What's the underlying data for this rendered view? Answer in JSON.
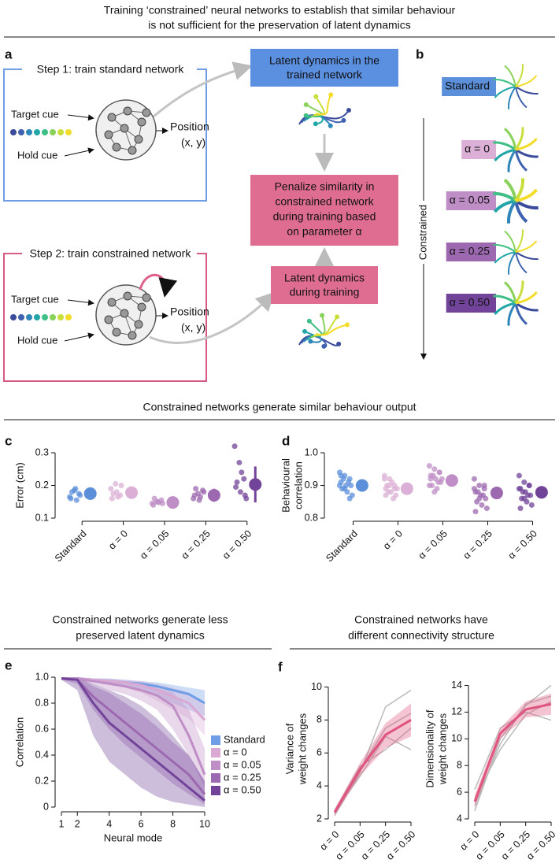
{
  "title_lines": [
    "Training ‘constrained’ neural networks to establish that similar behaviour",
    "is not sufficient for the preservation of latent dynamics"
  ],
  "diagram": {
    "panel": "a",
    "step1": "Step 1: train standard network",
    "step2": "Step 2: train constrained network",
    "target_cue": "Target cue",
    "hold_cue": "Hold cue",
    "position": "Position",
    "position_xy": "(x, y)",
    "box_trained": [
      "Latent dynamics in the",
      "trained network"
    ],
    "box_penalize": [
      "Penalize similarity in",
      "constrained network",
      "during training based",
      "on parameter α"
    ],
    "box_training": [
      "Latent dynamics",
      "during training"
    ]
  },
  "panel_b": {
    "panel": "b",
    "labels": [
      "Standard",
      "α = 0",
      "α = 0.05",
      "α = 0.25",
      "α = 0.50"
    ],
    "colors": [
      "#5b8fd9",
      "#dcb0d6",
      "#bf8ec6",
      "#9c68b0",
      "#71449a"
    ],
    "constrained": "Constrained"
  },
  "section_titles": [
    [
      "Constrained networks generate similar behaviour output"
    ],
    [
      "Constrained networks generate less",
      "preserved latent dynamics"
    ],
    [
      "Constrained networks have",
      "different connectivity structure"
    ]
  ],
  "chart_data": [
    {
      "type": "strip",
      "panel": "c",
      "ylabel": "Error (cm)",
      "categories": [
        "Standard",
        "α = 0",
        "α = 0.05",
        "α = 0.25",
        "α = 0.50"
      ],
      "colors": [
        "#5b8fd9",
        "#dcb0d6",
        "#bf8ec6",
        "#9c68b0",
        "#71449a"
      ],
      "ylim": [
        0.1,
        0.3
      ],
      "yticks": [
        0.1,
        0.2,
        0.3
      ],
      "means": [
        0.175,
        0.178,
        0.148,
        0.17,
        0.203
      ],
      "errors": [
        0.012,
        0.018,
        0.006,
        0.02,
        0.055
      ],
      "points": [
        [
          0.165,
          0.185,
          0.175,
          0.16,
          0.19,
          0.17,
          0.18,
          0.155
        ],
        [
          0.19,
          0.205,
          0.17,
          0.16,
          0.18,
          0.2,
          0.175,
          0.165
        ],
        [
          0.145,
          0.15,
          0.155,
          0.14,
          0.15,
          0.145,
          0.16,
          0.148
        ],
        [
          0.16,
          0.175,
          0.185,
          0.17,
          0.155,
          0.18,
          0.19,
          0.165
        ],
        [
          0.32,
          0.27,
          0.22,
          0.195,
          0.18,
          0.17,
          0.21,
          0.24,
          0.16
        ]
      ]
    },
    {
      "type": "strip",
      "panel": "d",
      "ylabel_lines": [
        "Behavioural",
        "correlation"
      ],
      "categories": [
        "Standard",
        "α = 0",
        "α = 0.05",
        "α = 0.25",
        "α = 0.50"
      ],
      "colors": [
        "#5b8fd9",
        "#dcb0d6",
        "#bf8ec6",
        "#9c68b0",
        "#71449a"
      ],
      "ylim": [
        0.8,
        1.0
      ],
      "yticks": [
        0.8,
        0.9,
        {
          "value": 1.0,
          "label": "1.0"
        }
      ],
      "means": [
        0.9,
        0.89,
        0.915,
        0.877,
        0.879
      ],
      "errors": [
        0.015,
        0.012,
        0.018,
        0.017,
        0.017
      ],
      "points": [
        [
          0.94,
          0.93,
          0.92,
          0.91,
          0.9,
          0.9,
          0.89,
          0.88,
          0.87,
          0.92,
          0.91,
          0.9,
          0.89,
          0.86,
          0.93
        ],
        [
          0.93,
          0.92,
          0.9,
          0.89,
          0.88,
          0.87,
          0.9,
          0.91,
          0.89,
          0.88,
          0.86,
          0.92,
          0.9,
          0.89,
          0.87
        ],
        [
          0.96,
          0.95,
          0.94,
          0.93,
          0.92,
          0.91,
          0.9,
          0.89,
          0.92,
          0.93,
          0.91,
          0.9,
          0.88,
          0.94,
          0.92
        ],
        [
          0.92,
          0.9,
          0.89,
          0.88,
          0.87,
          0.86,
          0.85,
          0.84,
          0.83,
          0.88,
          0.87,
          0.89,
          0.86,
          0.9,
          0.82
        ],
        [
          0.93,
          0.91,
          0.9,
          0.89,
          0.88,
          0.87,
          0.86,
          0.85,
          0.84,
          0.88,
          0.87,
          0.89,
          0.86,
          0.9,
          0.83
        ]
      ]
    },
    {
      "type": "line",
      "panel": "e",
      "ylabel": "Correlation",
      "xlabel": "Neural mode",
      "x": [
        1,
        2,
        3,
        4,
        5,
        6,
        7,
        8,
        9,
        10
      ],
      "xlim": [
        1,
        10
      ],
      "xticks": [
        1,
        2,
        4,
        6,
        8,
        10
      ],
      "ylim": [
        0,
        1
      ],
      "yticks": [
        0,
        0.2,
        0.4,
        0.6,
        0.8,
        {
          "value": 1,
          "label": "1.0"
        }
      ],
      "legend": "right",
      "series": [
        {
          "name": "Standard",
          "color": "#6f9ee6",
          "values": [
            0.99,
            0.99,
            0.98,
            0.97,
            0.96,
            0.95,
            0.93,
            0.9,
            0.87,
            0.8
          ],
          "lower": [
            0.98,
            0.98,
            0.97,
            0.96,
            0.94,
            0.9,
            0.85,
            0.8,
            0.75,
            0.7
          ],
          "upper": [
            1,
            1,
            0.99,
            0.99,
            0.98,
            0.97,
            0.96,
            0.94,
            0.92,
            0.9
          ]
        },
        {
          "name": "α = 0",
          "color": "#d9a8d3",
          "values": [
            0.99,
            0.99,
            0.98,
            0.97,
            0.96,
            0.94,
            0.9,
            0.85,
            0.8,
            0.67
          ],
          "lower": [
            0.98,
            0.98,
            0.96,
            0.94,
            0.92,
            0.88,
            0.82,
            0.75,
            0.68,
            0.55
          ],
          "upper": [
            1,
            1,
            0.99,
            0.99,
            0.98,
            0.97,
            0.95,
            0.92,
            0.88,
            0.8
          ]
        },
        {
          "name": "α = 0.05",
          "color": "#bf8ec6",
          "values": [
            0.99,
            0.99,
            0.97,
            0.95,
            0.93,
            0.9,
            0.86,
            0.78,
            0.55,
            0.25
          ],
          "lower": [
            0.98,
            0.98,
            0.95,
            0.9,
            0.87,
            0.82,
            0.75,
            0.6,
            0.4,
            0.15
          ],
          "upper": [
            1,
            1,
            0.99,
            0.98,
            0.97,
            0.95,
            0.92,
            0.88,
            0.75,
            0.45
          ]
        },
        {
          "name": "α = 0.25",
          "color": "#9c68b0",
          "values": [
            0.99,
            0.98,
            0.85,
            0.75,
            0.65,
            0.55,
            0.45,
            0.35,
            0.25,
            0.1
          ],
          "lower": [
            0.98,
            0.95,
            0.75,
            0.6,
            0.48,
            0.38,
            0.28,
            0.18,
            0.1,
            0.02
          ],
          "upper": [
            1,
            1,
            0.93,
            0.88,
            0.8,
            0.72,
            0.62,
            0.5,
            0.4,
            0.2
          ]
        },
        {
          "name": "α = 0.50",
          "color": "#71449a",
          "values": [
            0.99,
            0.98,
            0.8,
            0.65,
            0.55,
            0.45,
            0.35,
            0.25,
            0.15,
            0.05
          ],
          "lower": [
            0.98,
            0.9,
            0.55,
            0.35,
            0.25,
            0.15,
            0.08,
            0.04,
            0.02,
            0
          ],
          "upper": [
            1,
            1,
            0.95,
            0.9,
            0.85,
            0.78,
            0.68,
            0.55,
            0.4,
            0.2
          ]
        }
      ]
    },
    {
      "type": "line",
      "panel": "f",
      "ylabel_lines": [
        "Variance of",
        "weight changes"
      ],
      "categories": [
        "α = 0",
        "α = 0.05",
        "α = 0.25",
        "α = 0.50"
      ],
      "ylim": [
        2,
        10.5
      ],
      "yticks": [
        2,
        4,
        6,
        8,
        10
      ],
      "series": [
        {
          "color": "#e0557f",
          "values": [
            2.4,
            5.0,
            7.1,
            8.0
          ],
          "lower": [
            2.2,
            4.6,
            6.3,
            7.0
          ],
          "upper": [
            2.6,
            5.4,
            7.8,
            9.0
          ]
        }
      ],
      "runs": [
        [
          2.2,
          4.8,
          8.8,
          9.8
        ],
        [
          2.5,
          5.2,
          6.2,
          7.5
        ],
        [
          2.3,
          5.0,
          7.5,
          8.4
        ],
        [
          2.4,
          4.6,
          7.0,
          6.2
        ]
      ]
    },
    {
      "type": "line",
      "ylabel_lines": [
        "Dimensionality of",
        "weight changes"
      ],
      "categories": [
        "α = 0",
        "α = 0.05",
        "α = 0.25",
        "α = 0.50"
      ],
      "ylim": [
        4,
        14.5
      ],
      "yticks": [
        4,
        6,
        8,
        10,
        12,
        14
      ],
      "series": [
        {
          "color": "#e0557f",
          "values": [
            5.3,
            10.4,
            12.2,
            12.6
          ],
          "lower": [
            4.8,
            10.0,
            11.6,
            11.8
          ],
          "upper": [
            5.8,
            10.8,
            12.8,
            13.4
          ]
        }
      ],
      "runs": [
        [
          4.6,
          10.0,
          12.5,
          14.0
        ],
        [
          6.2,
          10.8,
          12.0,
          11.4
        ],
        [
          5.0,
          9.6,
          12.6,
          13.2
        ],
        [
          5.5,
          9.2,
          11.8,
          12.8
        ]
      ]
    }
  ]
}
